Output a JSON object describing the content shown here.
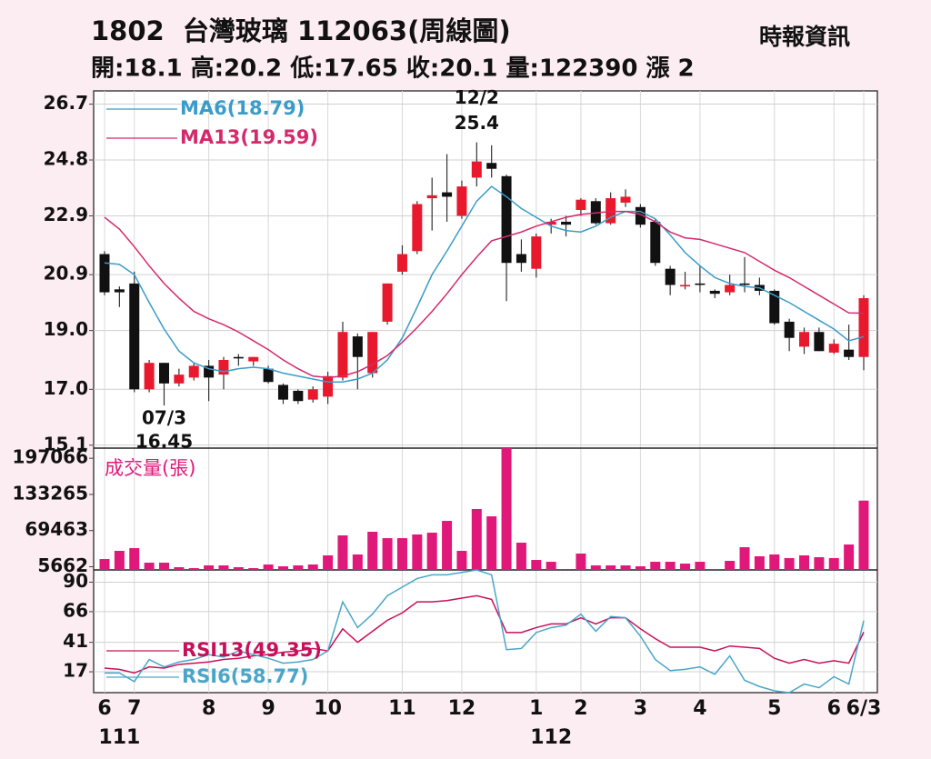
{
  "chart_data": [
    {
      "type": "candlestick",
      "title": "1802  台灣玻璃 112063(周線圖)",
      "subtitle": "開:18.1 高:20.2 低:17.65 收:20.1 量:122390 漲 2",
      "source": "時報資訊",
      "up_color": "#e8192c",
      "down_color": "#111111",
      "open": [
        21.6,
        20.4,
        20.6,
        17.0,
        17.9,
        17.2,
        17.4,
        17.8,
        17.5,
        18.1,
        17.95,
        17.7,
        17.15,
        16.95,
        16.65,
        16.75,
        17.4,
        18.8,
        17.55,
        19.3,
        21.0,
        21.7,
        23.5,
        23.7,
        22.9,
        24.2,
        24.7,
        24.25,
        21.6,
        21.1,
        22.6,
        22.7,
        23.1,
        23.4,
        22.65,
        23.35,
        23.2,
        22.7,
        21.1,
        20.5,
        20.6,
        20.35,
        20.3,
        20.6,
        20.55,
        20.35,
        19.3,
        18.45,
        18.95,
        18.25,
        18.35,
        18.1
      ],
      "high": [
        21.7,
        20.5,
        21.0,
        18.0,
        17.9,
        17.7,
        17.9,
        18.0,
        18.1,
        18.2,
        18.1,
        17.8,
        17.2,
        17.0,
        17.1,
        17.6,
        19.3,
        18.9,
        18.95,
        20.6,
        21.9,
        23.4,
        24.2,
        25.0,
        24.1,
        25.4,
        25.3,
        24.3,
        22.1,
        22.3,
        22.8,
        22.9,
        23.5,
        23.5,
        23.7,
        23.8,
        23.3,
        22.8,
        21.2,
        21.0,
        21.2,
        20.4,
        20.9,
        21.5,
        20.8,
        20.4,
        19.4,
        19.1,
        19.1,
        18.7,
        19.2,
        20.2
      ],
      "low": [
        20.2,
        19.8,
        16.9,
        16.9,
        16.45,
        17.1,
        17.3,
        16.6,
        17.0,
        17.8,
        17.8,
        17.2,
        16.5,
        16.5,
        16.55,
        16.5,
        17.3,
        17.0,
        17.4,
        19.2,
        20.9,
        21.6,
        22.4,
        22.7,
        22.8,
        23.9,
        24.2,
        20.0,
        21.0,
        20.8,
        22.3,
        22.2,
        22.9,
        22.6,
        22.6,
        23.2,
        22.5,
        21.2,
        20.2,
        20.4,
        20.3,
        20.1,
        20.2,
        20.3,
        20.2,
        19.2,
        18.3,
        18.2,
        18.3,
        18.2,
        18.0,
        17.65
      ],
      "close": [
        20.3,
        20.3,
        17.0,
        17.9,
        17.2,
        17.5,
        17.8,
        17.4,
        18.0,
        18.05,
        18.1,
        17.25,
        16.65,
        16.6,
        17.0,
        17.45,
        18.95,
        18.1,
        18.95,
        20.6,
        21.6,
        23.3,
        23.6,
        23.55,
        23.9,
        24.75,
        24.5,
        21.3,
        21.3,
        22.2,
        22.7,
        22.6,
        23.45,
        22.65,
        23.5,
        23.55,
        22.6,
        21.3,
        20.55,
        20.55,
        20.55,
        20.25,
        20.55,
        20.55,
        20.35,
        19.25,
        18.75,
        18.95,
        18.3,
        18.55,
        18.1,
        20.1
      ],
      "series": [
        {
          "name": "MA6(18.79)",
          "color": "#3a9cc8",
          "values": [
            21.3,
            21.25,
            20.9,
            19.95,
            19.05,
            18.3,
            17.9,
            17.7,
            17.6,
            17.7,
            17.75,
            17.7,
            17.55,
            17.45,
            17.35,
            17.25,
            17.25,
            17.35,
            17.55,
            18.0,
            18.75,
            19.8,
            20.9,
            21.7,
            22.55,
            23.4,
            23.9,
            23.55,
            23.15,
            22.85,
            22.55,
            22.4,
            22.35,
            22.55,
            22.85,
            23.05,
            23.05,
            22.8,
            22.25,
            21.65,
            21.2,
            20.8,
            20.6,
            20.5,
            20.45,
            20.2,
            19.95,
            19.65,
            19.35,
            19.05,
            18.65,
            18.79
          ]
        },
        {
          "name": "MA13(19.59)",
          "color": "#d42a6c",
          "values": [
            22.85,
            22.45,
            21.85,
            21.2,
            20.6,
            20.1,
            19.65,
            19.4,
            19.2,
            18.95,
            18.65,
            18.35,
            18.0,
            17.7,
            17.45,
            17.4,
            17.45,
            17.6,
            17.85,
            18.15,
            18.6,
            19.1,
            19.65,
            20.25,
            20.9,
            21.5,
            22.05,
            22.2,
            22.35,
            22.55,
            22.7,
            22.85,
            22.95,
            23.0,
            23.05,
            23.05,
            22.95,
            22.7,
            22.35,
            22.15,
            22.1,
            21.95,
            21.8,
            21.65,
            21.35,
            21.05,
            20.8,
            20.5,
            20.2,
            19.9,
            19.6,
            19.59
          ]
        }
      ],
      "annotations": {
        "high": {
          "date": "12/2",
          "value": 25.4
        },
        "low": {
          "date": "07/3",
          "value": 16.45
        }
      },
      "ylim": [
        15.0,
        27.15
      ],
      "yticks": [
        15.1,
        {
          "value": 17,
          "label": "17.0"
        },
        {
          "value": 19,
          "label": "19.0"
        },
        20.9,
        22.9,
        24.8,
        26.7
      ],
      "grid": true
    },
    {
      "type": "bar",
      "title": "成交量(張)",
      "color": "#e0187a",
      "values": [
        19200,
        33700,
        38500,
        12800,
        12800,
        4800,
        3200,
        8000,
        8000,
        4800,
        3200,
        9600,
        6400,
        8000,
        9600,
        25700,
        61000,
        27300,
        67400,
        56100,
        56100,
        62600,
        65800,
        86600,
        33700,
        107500,
        94600,
        215000,
        48100,
        17600,
        14400,
        1600,
        28900,
        8000,
        8000,
        8000,
        6400,
        14400,
        14400,
        11200,
        14400,
        1600,
        16000,
        40100,
        24100,
        27300,
        20900,
        25700,
        22500,
        20900,
        44900,
        122390
      ],
      "ylim": [
        0,
        215000
      ],
      "yticks": [
        5662,
        69463,
        133265,
        197066
      ]
    },
    {
      "type": "line",
      "categories": [
        "6",
        null,
        "7",
        null,
        null,
        null,
        null,
        "8",
        null,
        null,
        null,
        "9",
        null,
        null,
        null,
        "10",
        null,
        null,
        null,
        null,
        "11",
        null,
        null,
        null,
        "12",
        null,
        null,
        null,
        null,
        "1",
        null,
        null,
        "2",
        null,
        null,
        null,
        "3",
        null,
        null,
        null,
        "4",
        null,
        null,
        null,
        null,
        "5",
        null,
        null,
        null,
        "6",
        null,
        "6/3"
      ],
      "sub_categories": [
        null,
        "111",
        null,
        null,
        null,
        null,
        null,
        null,
        null,
        null,
        null,
        null,
        null,
        null,
        null,
        null,
        null,
        null,
        null,
        null,
        null,
        null,
        null,
        null,
        null,
        null,
        null,
        null,
        null,
        null,
        "112",
        null,
        null,
        null,
        null,
        null,
        null,
        null,
        null,
        null,
        null,
        null,
        null,
        null,
        null,
        null,
        null,
        null,
        null,
        null,
        null,
        null
      ],
      "series": [
        {
          "name": "RSI13(49.35)",
          "color": "#c8105a",
          "values": [
            20,
            19,
            16,
            21,
            20,
            23,
            24,
            25,
            27,
            28,
            30,
            31,
            33,
            34,
            36,
            34,
            52,
            41,
            50,
            59,
            65,
            74,
            74,
            75,
            77,
            79,
            76,
            49,
            49,
            53,
            56,
            56,
            61,
            56,
            61,
            61,
            52,
            44,
            37,
            37,
            37,
            34,
            38,
            37,
            36,
            28,
            24,
            27,
            24,
            26,
            24,
            49.35
          ]
        },
        {
          "name": "RSI6(58.77)",
          "color": "#4aa6c8",
          "values": [
            16,
            16,
            9,
            27,
            21,
            25,
            27,
            31,
            29,
            34,
            31,
            28,
            24,
            25,
            27,
            34,
            74,
            53,
            64,
            79,
            86,
            93,
            96,
            96,
            98,
            100,
            96,
            35,
            36,
            49,
            53,
            55,
            64,
            50,
            62,
            61,
            46,
            27,
            18,
            19,
            21,
            15,
            30,
            10,
            5,
            1.5,
            0,
            7,
            4,
            13,
            7,
            58.77
          ]
        }
      ],
      "ylim": [
        0,
        100
      ],
      "yticks": [
        17,
        41,
        66,
        90
      ]
    }
  ]
}
